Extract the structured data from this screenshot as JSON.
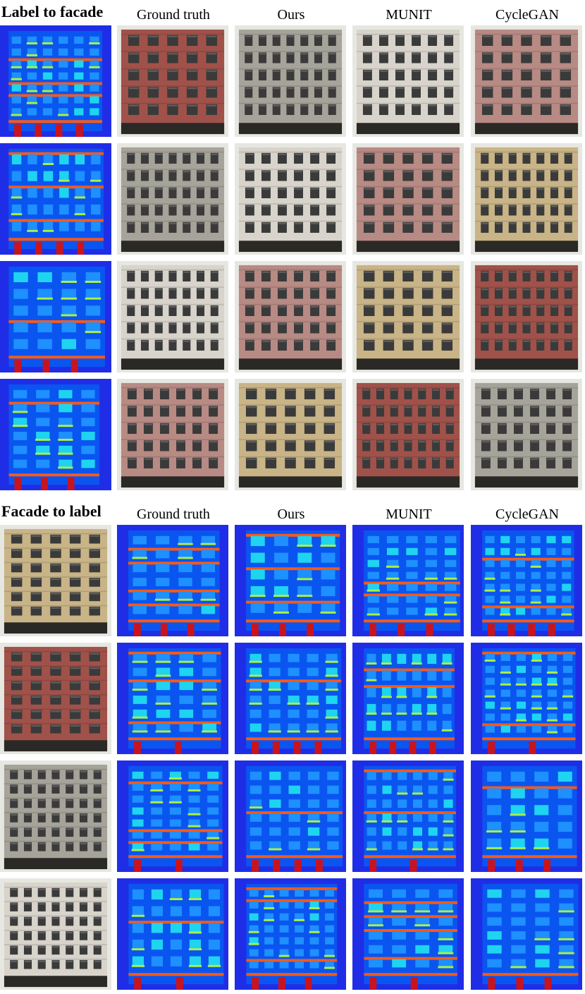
{
  "sections": [
    {
      "id": "label-to-facade",
      "title": "Label to facade",
      "columns": [
        "Ground truth",
        "Ours",
        "MUNIT",
        "CycleGAN"
      ],
      "input_kind": "label map",
      "output_kind": "facade photo",
      "rows": 4
    },
    {
      "id": "facade-to-label",
      "title": "Facade to label",
      "columns": [
        "Ground truth",
        "Ours",
        "MUNIT",
        "CycleGAN"
      ],
      "input_kind": "facade photo",
      "output_kind": "label map",
      "rows": 4
    }
  ],
  "colors": {
    "label_background": "#1f2ee6",
    "label_wall": "#0a55f0",
    "label_window": "#1e90ff",
    "label_window_light": "#1fd4f0",
    "label_sill": "#a8f04a",
    "label_cornice": "#ff5a14",
    "label_door": "#c8141e",
    "label_balcony": "#c8f03c",
    "facade_beige": "#c9b487",
    "facade_red": "#a0524a",
    "facade_grey": "#a6a39a",
    "facade_white": "#d8d4cc",
    "facade_pink": "#b88a84"
  }
}
